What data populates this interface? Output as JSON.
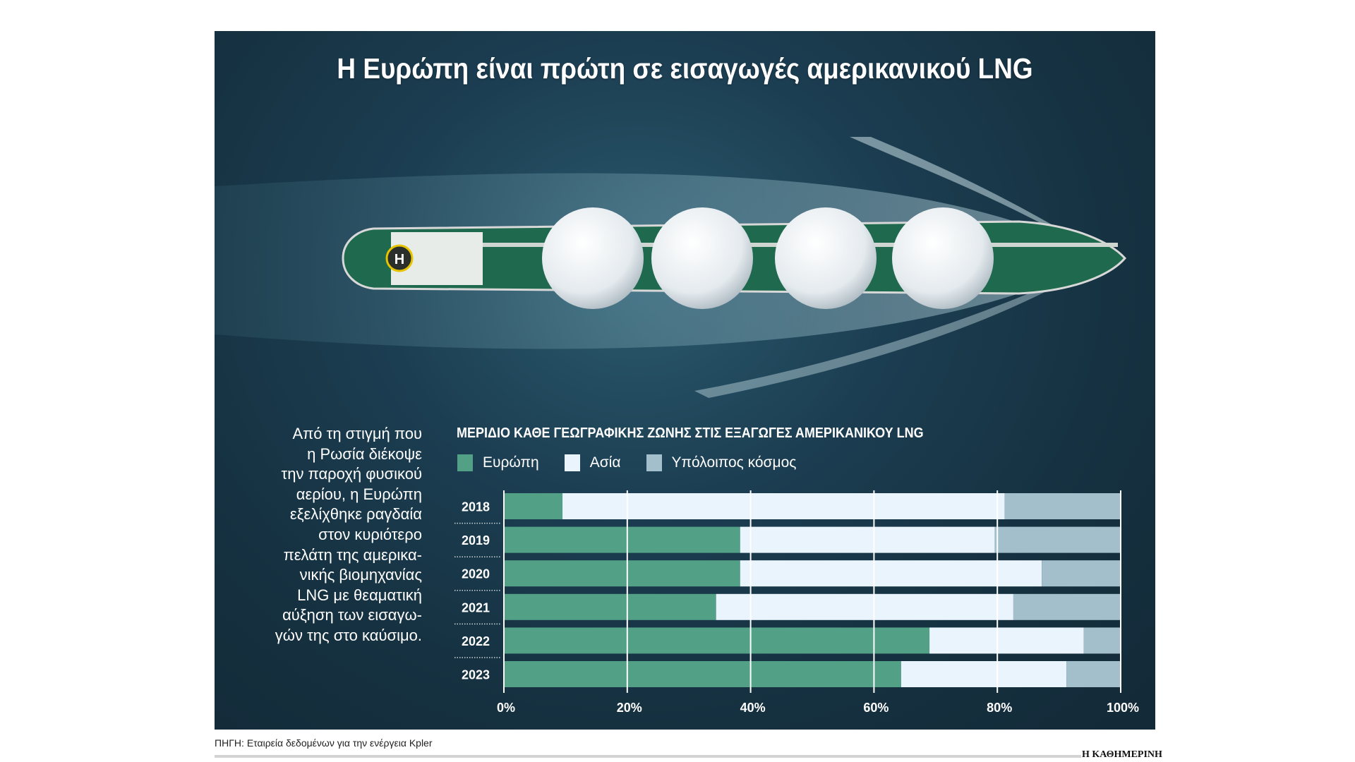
{
  "title": "Η Ευρώπη είναι πρώτη σε εισαγωγές αμερικανικού LNG",
  "side_text": [
    "Από τη στιγμή που",
    "η Ρωσία διέκοψε",
    "την παροχή φυσικού",
    "αερίου, η Ευρώπη",
    "εξελίχθηκε ραγδαία",
    "στον κυριότερο",
    "πελάτη της αμερικα-",
    "νικής βιομηχανίας",
    "LNG με θεαματική",
    "αύξηση των εισαγω-",
    "γών της στο καύσιμο."
  ],
  "source": "ΠΗΓΗ: Εταιρεία δεδομένων για την ενέργεια Kpler",
  "logo": "Η ΚΑΘΗΜΕΡΙΝΗ",
  "colors": {
    "europe": "#52a086",
    "asia": "#eaf4fd",
    "rest": "#a4bfcc",
    "background": "#1a3446"
  },
  "chart_data": {
    "type": "bar",
    "orientation": "horizontal-stacked-100",
    "title": "ΜΕΡΙΔΙΟ ΚΑΘΕ ΓΕΩΓΡΑΦΙΚΗΣ ΖΩΝΗΣ ΣΤΙΣ ΕΞΑΓΩΓΕΣ ΑΜΕΡΙΚΑΝΙΚΟΥ LNG",
    "categories": [
      "2018",
      "2019",
      "2020",
      "2021",
      "2022",
      "2023"
    ],
    "series": [
      {
        "name": "Ευρώπη",
        "values": [
          9.5,
          38.3,
          38.3,
          34.4,
          69.0,
          64.4
        ]
      },
      {
        "name": "Ασία",
        "values": [
          71.7,
          41.3,
          48.9,
          48.2,
          25.0,
          26.8
        ]
      },
      {
        "name": "Υπόλοιπος κόσμος",
        "values": [
          18.8,
          20.4,
          12.8,
          17.4,
          6.0,
          8.8
        ]
      }
    ],
    "xlim": [
      0,
      100
    ],
    "xticks": [
      "0%",
      "20%",
      "40%",
      "60%",
      "80%",
      "100%"
    ],
    "grid": true,
    "legend": "top-left"
  }
}
